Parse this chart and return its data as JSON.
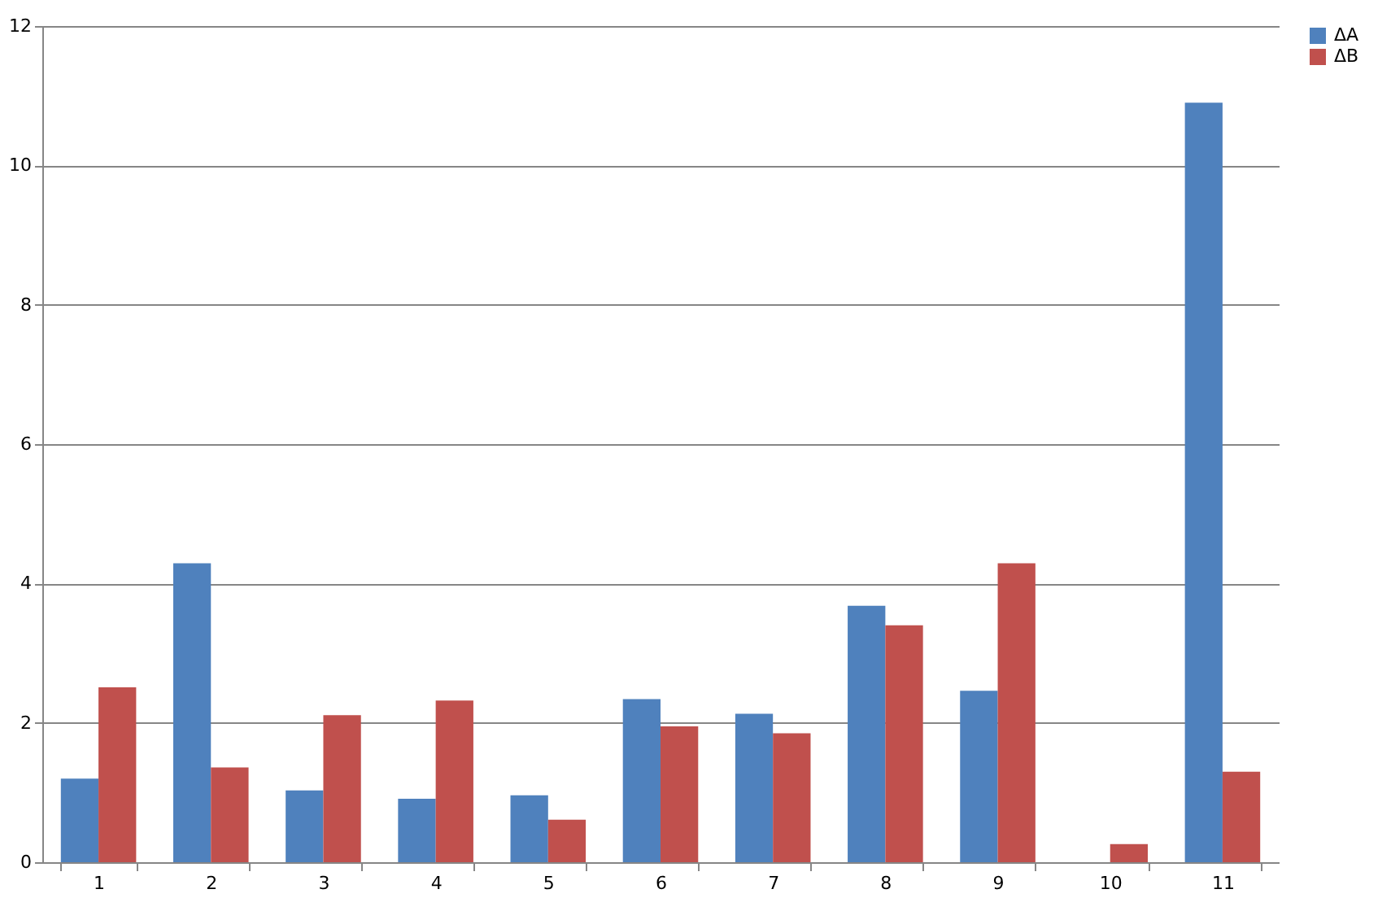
{
  "chart_data": {
    "type": "bar",
    "categories": [
      "1",
      "2",
      "3",
      "4",
      "5",
      "6",
      "7",
      "8",
      "9",
      "10",
      "11"
    ],
    "series": [
      {
        "name": "ΔA",
        "color": "#4f81bd",
        "values": [
          1.2,
          4.29,
          1.03,
          0.91,
          0.96,
          2.34,
          2.13,
          3.68,
          2.46,
          null,
          10.9
        ]
      },
      {
        "name": "ΔB",
        "color": "#c0504d",
        "values": [
          2.51,
          1.36,
          2.11,
          2.32,
          0.61,
          1.95,
          1.85,
          3.4,
          4.29,
          0.26,
          1.3
        ]
      }
    ],
    "ylim": [
      0,
      12
    ],
    "yticks": [
      0,
      2,
      4,
      6,
      8,
      10,
      12
    ],
    "grid": "y",
    "legend": "right"
  }
}
